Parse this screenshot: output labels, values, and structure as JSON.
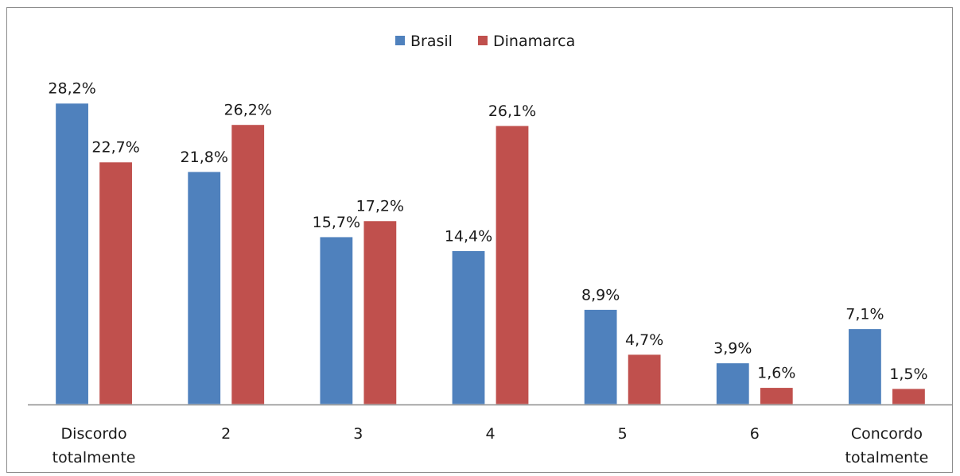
{
  "chart_data": {
    "type": "bar",
    "categories": [
      [
        "Discordo",
        "totalmente"
      ],
      [
        "2"
      ],
      [
        "3"
      ],
      [
        "4"
      ],
      [
        "5"
      ],
      [
        "6"
      ],
      [
        "Concordo",
        "totalmente"
      ]
    ],
    "series": [
      {
        "name": "Brasil",
        "color": "#4f81bd",
        "values": [
          28.2,
          21.8,
          15.7,
          14.4,
          8.9,
          3.9,
          7.1
        ],
        "labels": [
          "28,2%",
          "21,8%",
          "15,7%",
          "14,4%",
          "8,9%",
          "3,9%",
          "7,1%"
        ]
      },
      {
        "name": "Dinamarca",
        "color": "#c0504d",
        "values": [
          22.7,
          26.2,
          17.2,
          26.1,
          4.7,
          1.6,
          1.5
        ],
        "labels": [
          "22,7%",
          "26,2%",
          "17,2%",
          "26,1%",
          "4,7%",
          "1,6%",
          "1,5%"
        ]
      }
    ],
    "ylim": [
      0,
      30
    ],
    "legend_position": "top-center",
    "grid": false,
    "data_labels": true
  }
}
